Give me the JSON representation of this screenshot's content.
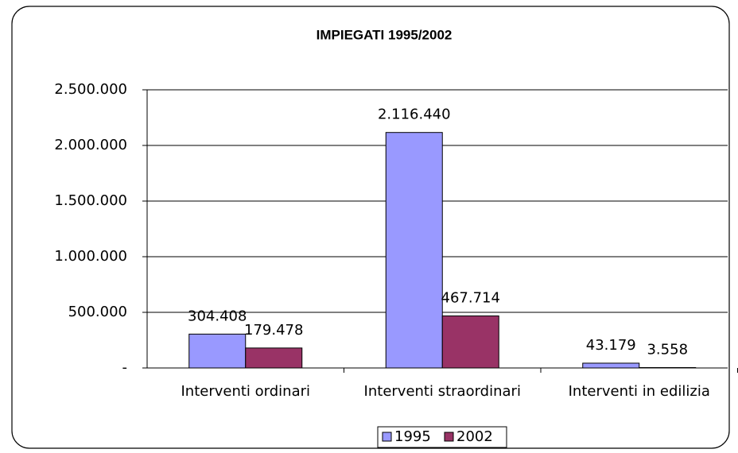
{
  "chart_data": {
    "type": "bar",
    "title": "IMPIEGATI 1995/2002",
    "categories": [
      "Interventi ordinari",
      "Interventi straordinari",
      "Interventi in edilizia"
    ],
    "series": [
      {
        "name": "1995",
        "color": "#9999ff",
        "values": [
          304408,
          2116440,
          43179
        ],
        "value_labels": [
          "304.408",
          "2.116.440",
          "43.179"
        ]
      },
      {
        "name": "2002",
        "color": "#993366",
        "values": [
          179478,
          467714,
          3558
        ],
        "value_labels": [
          "179.478",
          "467.714",
          "3.558"
        ]
      }
    ],
    "ylim": [
      0,
      2500000
    ],
    "yticks": [
      {
        "value": 0,
        "label": "-"
      },
      {
        "value": 500000,
        "label": "500.000"
      },
      {
        "value": 1000000,
        "label": "1.000.000"
      },
      {
        "value": 1500000,
        "label": "1.500.000"
      },
      {
        "value": 2000000,
        "label": "2.000.000"
      },
      {
        "value": 2500000,
        "label": "2.500.000"
      }
    ],
    "grid": true,
    "legend": "bottom"
  }
}
